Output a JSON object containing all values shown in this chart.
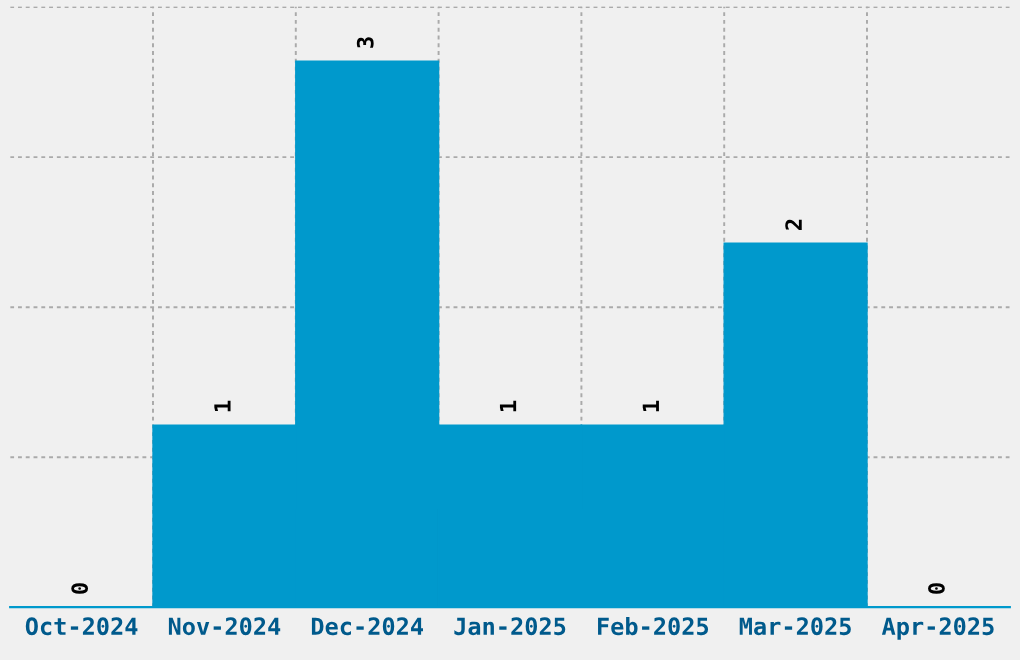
{
  "chart_data": {
    "type": "bar",
    "categories": [
      "Oct-2024",
      "Nov-2024",
      "Dec-2024",
      "Jan-2025",
      "Feb-2025",
      "Mar-2025",
      "Apr-2025"
    ],
    "values": [
      0,
      1,
      3,
      1,
      1,
      2,
      0
    ],
    "color": "#0099cc",
    "data_labels": true,
    "grid": true,
    "tick_labels": "x",
    "ylim": [
      0,
      3.3
    ],
    "yticks": [
      {
        "value": 0.824,
        "label": null
      },
      {
        "value": 1.648,
        "label": null
      },
      {
        "value": 2.473,
        "label": null
      },
      {
        "value": 3.297,
        "label": null
      }
    ]
  }
}
